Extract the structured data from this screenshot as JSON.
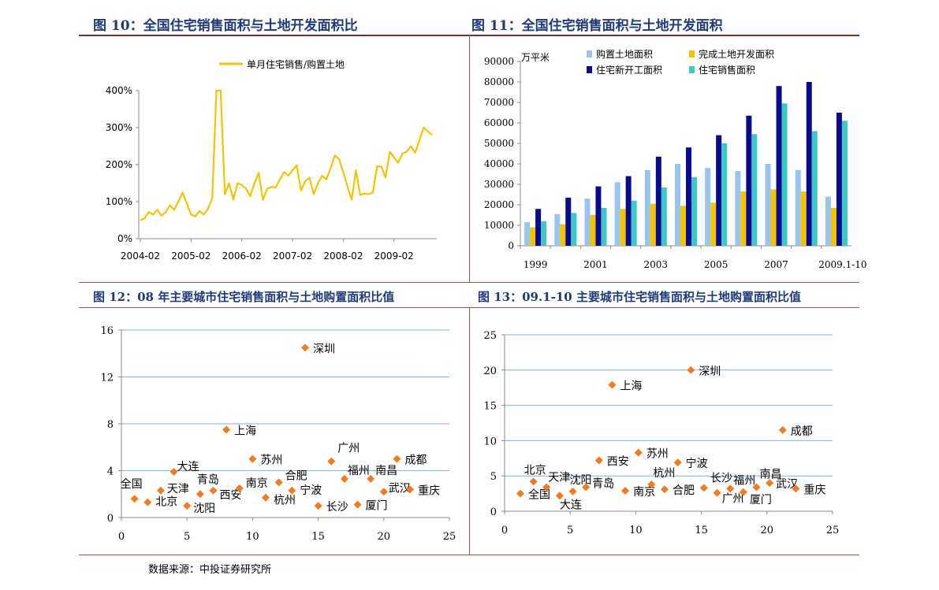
{
  "headers": {
    "fig10": "图 10：全国住宅销售面积与土地开发面积比",
    "fig11": "图 11：全国住宅销售面积与土地开发面积",
    "fig12": "图 12：08 年主要城市住宅销售面积与土地购置面积比值",
    "fig13": "图 13：09.1-10 主要城市住宅销售面积与土地购置面积比值"
  },
  "source": "数据来源：中投证券研究所",
  "colors": {
    "line": "#f5c400",
    "gold": "#f5c400",
    "lightblue": "#99c4f0",
    "navy": "#0a0a8c",
    "teal": "#3cc8c8",
    "marker": "#f47a20",
    "grid": "#7fb0e0",
    "header": "#1f3a7a"
  },
  "chart_data": [
    {
      "id": "fig10",
      "type": "line",
      "legend": [
        "单月住宅销售/购置土地"
      ],
      "xticks": [
        "2004-02",
        "2005-02",
        "2006-02",
        "2007-02",
        "2008-02",
        "2009-02"
      ],
      "yticks": [
        "0%",
        "100%",
        "200%",
        "300%",
        "400%"
      ],
      "ylim": [
        0,
        400
      ],
      "series": [
        {
          "name": "单月住宅销售/购置土地",
          "values": [
            50,
            55,
            72,
            65,
            78,
            62,
            72,
            90,
            78,
            100,
            125,
            95,
            65,
            60,
            75,
            65,
            80,
            110,
            400,
            400,
            120,
            150,
            105,
            150,
            145,
            135,
            115,
            150,
            178,
            105,
            135,
            140,
            138,
            160,
            180,
            170,
            185,
            198,
            130,
            155,
            165,
            120,
            150,
            170,
            160,
            190,
            225,
            215,
            180,
            140,
            105,
            185,
            118,
            122,
            120,
            125,
            195,
            195,
            165,
            235,
            220,
            205,
            230,
            235,
            250,
            232,
            265,
            300,
            290,
            280
          ]
        }
      ]
    },
    {
      "id": "fig11",
      "type": "bar",
      "ylabel": "万平米",
      "ylim": [
        0,
        90000
      ],
      "yticks": [
        "0",
        "10000",
        "20000",
        "30000",
        "40000",
        "50000",
        "60000",
        "70000",
        "80000",
        "90000"
      ],
      "categories": [
        "1999",
        "2000",
        "2001",
        "2002",
        "2003",
        "2004",
        "2005",
        "2006",
        "2007",
        "2008",
        "2009.1-10"
      ],
      "xtick_labels": [
        "1999",
        "2001",
        "2003",
        "2005",
        "2007",
        "2009.1-10"
      ],
      "series": [
        {
          "name": "购置土地面积",
          "values": [
            11500,
            15500,
            23000,
            31000,
            37000,
            40000,
            38000,
            36500,
            40000,
            37000,
            24000
          ]
        },
        {
          "name": "完成土地开发面积",
          "values": [
            9000,
            10500,
            15000,
            18000,
            20500,
            19500,
            21000,
            26500,
            27500,
            26500,
            18500
          ]
        },
        {
          "name": "住宅新开工面积",
          "values": [
            18000,
            23500,
            29000,
            34000,
            43500,
            48000,
            54000,
            63500,
            78000,
            80000,
            65000
          ]
        },
        {
          "name": "住宅销售面积",
          "values": [
            12000,
            16000,
            18500,
            22000,
            28500,
            33500,
            50000,
            54500,
            69500,
            56000,
            61000
          ]
        }
      ]
    },
    {
      "id": "fig12",
      "type": "scatter",
      "xlim": [
        0,
        25
      ],
      "ylim": [
        0,
        16
      ],
      "xticks": [
        "0",
        "5",
        "10",
        "15",
        "20",
        "25"
      ],
      "yticks": [
        "0",
        "4",
        "8",
        "12",
        "16"
      ],
      "points": [
        {
          "label": "全国",
          "x": 1,
          "y": 1.6,
          "lx": -4,
          "ly": -14,
          "anchor": "middle"
        },
        {
          "label": "北京",
          "x": 2,
          "y": 1.3,
          "lx": 10,
          "ly": 4,
          "anchor": "start"
        },
        {
          "label": "天津",
          "x": 3,
          "y": 2.3,
          "lx": 8,
          "ly": 2,
          "anchor": "start"
        },
        {
          "label": "大连",
          "x": 4,
          "y": 3.9,
          "lx": 4,
          "ly": -2,
          "anchor": "start"
        },
        {
          "label": "沈阳",
          "x": 5,
          "y": 1.0,
          "lx": 8,
          "ly": 8,
          "anchor": "start"
        },
        {
          "label": "青岛",
          "x": 6,
          "y": 2.0,
          "lx": -4,
          "ly": -14,
          "anchor": "start"
        },
        {
          "label": "西安",
          "x": 7,
          "y": 2.3,
          "lx": 8,
          "ly": 10,
          "anchor": "start"
        },
        {
          "label": "上海",
          "x": 8,
          "y": 7.5,
          "lx": 10,
          "ly": 6,
          "anchor": "start"
        },
        {
          "label": "南京",
          "x": 9,
          "y": 2.5,
          "lx": 8,
          "ly": -2,
          "anchor": "start"
        },
        {
          "label": "苏州",
          "x": 10,
          "y": 5.0,
          "lx": 10,
          "ly": 6,
          "anchor": "start"
        },
        {
          "label": "杭州",
          "x": 11,
          "y": 1.7,
          "lx": 10,
          "ly": 8,
          "anchor": "start"
        },
        {
          "label": "合肥",
          "x": 12,
          "y": 3.0,
          "lx": 8,
          "ly": -4,
          "anchor": "start"
        },
        {
          "label": "宁波",
          "x": 13,
          "y": 2.3,
          "lx": 10,
          "ly": 4,
          "anchor": "start"
        },
        {
          "label": "深圳",
          "x": 14,
          "y": 14.5,
          "lx": 10,
          "ly": 6,
          "anchor": "start"
        },
        {
          "label": "长沙",
          "x": 15,
          "y": 1.0,
          "lx": 10,
          "ly": 6,
          "anchor": "start"
        },
        {
          "label": "广州",
          "x": 16,
          "y": 4.8,
          "lx": 8,
          "ly": -12,
          "anchor": "start"
        },
        {
          "label": "福州",
          "x": 17,
          "y": 3.3,
          "lx": 4,
          "ly": -6,
          "anchor": "start"
        },
        {
          "label": "厦门",
          "x": 18,
          "y": 1.1,
          "lx": 10,
          "ly": 6,
          "anchor": "start"
        },
        {
          "label": "南昌",
          "x": 19,
          "y": 3.3,
          "lx": 6,
          "ly": -6,
          "anchor": "start"
        },
        {
          "label": "武汉",
          "x": 20,
          "y": 2.2,
          "lx": 6,
          "ly": 0,
          "anchor": "start"
        },
        {
          "label": "成都",
          "x": 21,
          "y": 5.0,
          "lx": 10,
          "ly": 6,
          "anchor": "start"
        },
        {
          "label": "重庆",
          "x": 22,
          "y": 2.4,
          "lx": 10,
          "ly": 6,
          "anchor": "start"
        }
      ]
    },
    {
      "id": "fig13",
      "type": "scatter",
      "xlim": [
        0,
        25
      ],
      "ylim": [
        0,
        25
      ],
      "xticks": [
        "0",
        "5",
        "10",
        "15",
        "20",
        "25"
      ],
      "yticks": [
        "0",
        "5",
        "10",
        "15",
        "20",
        "25"
      ],
      "points": [
        {
          "label": "全国",
          "x": 1.2,
          "y": 2.5,
          "lx": 10,
          "ly": 6,
          "anchor": "start"
        },
        {
          "label": "北京",
          "x": 2.2,
          "y": 4.2,
          "lx": -12,
          "ly": -10,
          "anchor": "start"
        },
        {
          "label": "天津",
          "x": 3.2,
          "y": 3.4,
          "lx": 2,
          "ly": -8,
          "anchor": "start"
        },
        {
          "label": "大连",
          "x": 4.2,
          "y": 2.2,
          "lx": 0,
          "ly": 16,
          "anchor": "start"
        },
        {
          "label": "沈阳",
          "x": 5.2,
          "y": 2.8,
          "lx": -4,
          "ly": -10,
          "anchor": "start"
        },
        {
          "label": "青岛",
          "x": 6.2,
          "y": 3.4,
          "lx": 8,
          "ly": 0,
          "anchor": "start"
        },
        {
          "label": "西安",
          "x": 7.2,
          "y": 7.2,
          "lx": 10,
          "ly": 6,
          "anchor": "start"
        },
        {
          "label": "上海",
          "x": 8.2,
          "y": 17.9,
          "lx": 10,
          "ly": 6,
          "anchor": "start"
        },
        {
          "label": "南京",
          "x": 9.2,
          "y": 2.9,
          "lx": 10,
          "ly": 6,
          "anchor": "start"
        },
        {
          "label": "苏州",
          "x": 10.2,
          "y": 8.3,
          "lx": 10,
          "ly": 6,
          "anchor": "start"
        },
        {
          "label": "杭州",
          "x": 11.2,
          "y": 3.8,
          "lx": 2,
          "ly": -10,
          "anchor": "start"
        },
        {
          "label": "合肥",
          "x": 12.2,
          "y": 3.1,
          "lx": 10,
          "ly": 6,
          "anchor": "start"
        },
        {
          "label": "宁波",
          "x": 13.2,
          "y": 6.9,
          "lx": 10,
          "ly": 6,
          "anchor": "start"
        },
        {
          "label": "深圳",
          "x": 14.2,
          "y": 20.0,
          "lx": 10,
          "ly": 6,
          "anchor": "start"
        },
        {
          "label": "长沙",
          "x": 15.2,
          "y": 3.3,
          "lx": 8,
          "ly": -8,
          "anchor": "start"
        },
        {
          "label": "广州",
          "x": 16.2,
          "y": 2.6,
          "lx": 6,
          "ly": 12,
          "anchor": "start"
        },
        {
          "label": "福州",
          "x": 17.2,
          "y": 3.2,
          "lx": 4,
          "ly": -6,
          "anchor": "start"
        },
        {
          "label": "厦门",
          "x": 18.2,
          "y": 2.7,
          "lx": 8,
          "ly": 14,
          "anchor": "start"
        },
        {
          "label": "南昌",
          "x": 19.2,
          "y": 3.4,
          "lx": 4,
          "ly": -12,
          "anchor": "start"
        },
        {
          "label": "武汉",
          "x": 20.2,
          "y": 4.0,
          "lx": 8,
          "ly": 6,
          "anchor": "start"
        },
        {
          "label": "成都",
          "x": 21.2,
          "y": 11.5,
          "lx": 10,
          "ly": 6,
          "anchor": "start"
        },
        {
          "label": "重庆",
          "x": 22.2,
          "y": 3.2,
          "lx": 10,
          "ly": 6,
          "anchor": "start"
        }
      ]
    }
  ]
}
